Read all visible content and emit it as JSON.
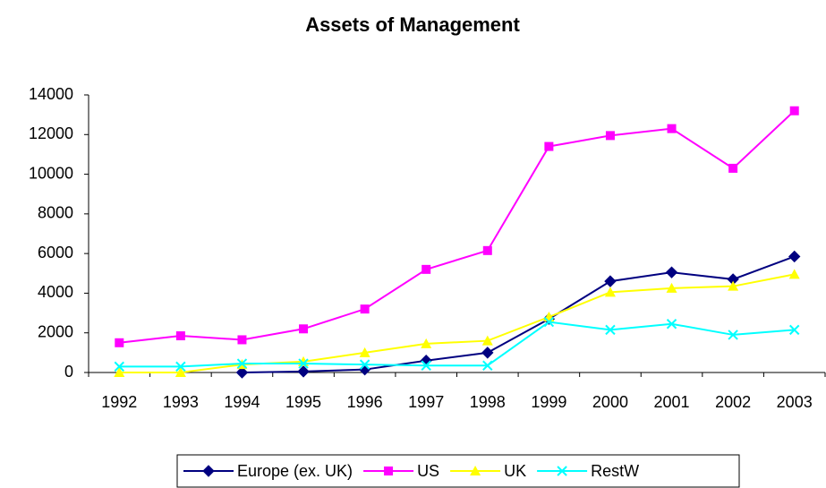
{
  "chart_data": {
    "type": "line",
    "title": "Assets of Management",
    "categories": [
      "1992",
      "1993",
      "1994",
      "1995",
      "1996",
      "1997",
      "1998",
      "1999",
      "2000",
      "2001",
      "2002",
      "2003"
    ],
    "series": [
      {
        "name": "Europe (ex. UK)",
        "color": "#000080",
        "marker": "diamond",
        "values": [
          null,
          null,
          0,
          50,
          150,
          600,
          1000,
          2700,
          4600,
          5050,
          4700,
          5850
        ]
      },
      {
        "name": "US",
        "color": "#ff00ff",
        "marker": "square",
        "values": [
          1500,
          1850,
          1650,
          2200,
          3200,
          5200,
          6150,
          11400,
          11950,
          12300,
          10300,
          13200
        ]
      },
      {
        "name": "UK",
        "color": "#ffff00",
        "marker": "triangle",
        "values": [
          0,
          0,
          400,
          550,
          1000,
          1450,
          1600,
          2800,
          4050,
          4250,
          4350,
          4950
        ]
      },
      {
        "name": "RestW",
        "color": "#00ffff",
        "marker": "x",
        "values": [
          300,
          300,
          450,
          450,
          400,
          350,
          350,
          2550,
          2150,
          2450,
          1900,
          2150
        ]
      }
    ],
    "ylim": [
      0,
      14000
    ],
    "yticks": [
      0,
      2000,
      4000,
      6000,
      8000,
      10000,
      12000,
      14000
    ],
    "grid": false,
    "legend": "bottom"
  }
}
